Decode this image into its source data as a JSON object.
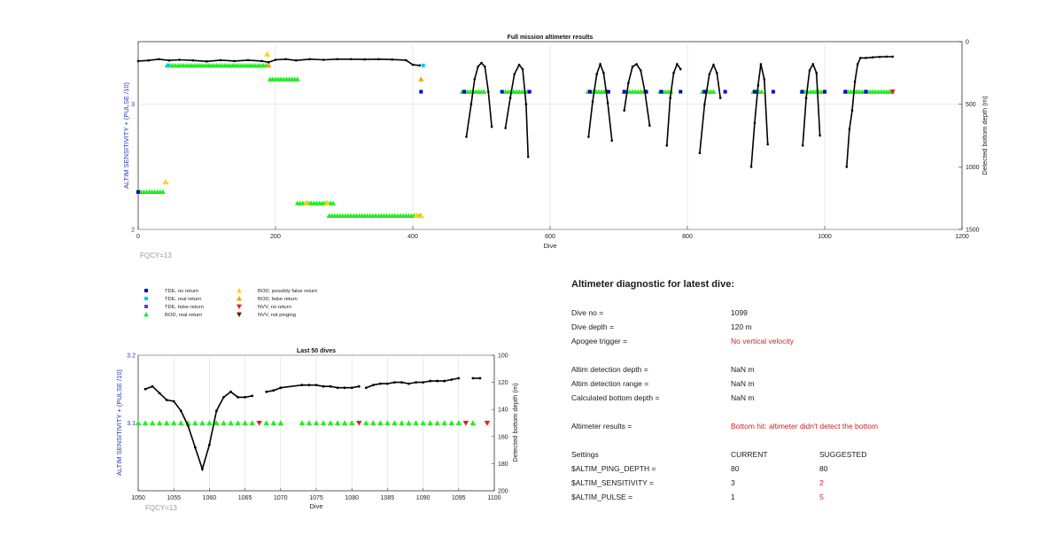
{
  "chart_data": [
    {
      "type": "scatter",
      "title": "Full mission altimeter results",
      "xlabel": "Dive",
      "ylabel": "ALTIM SENSITIVITY + (PULSE /10)",
      "y2label": "Detected bottom depth (m)",
      "xlim": [
        0,
        1200
      ],
      "ylim": [
        2,
        3.5
      ],
      "y2lim": [
        1500,
        0
      ],
      "y2_reversed": true,
      "x_ticks": [
        "0",
        "200",
        "400",
        "600",
        "800",
        "1000",
        "1200"
      ],
      "y_ticks": [
        "2",
        "3"
      ],
      "y2_ticks": [
        "0",
        "500",
        "1000",
        "1500"
      ],
      "grid": true,
      "annotation": "FQCY=13",
      "colors": {
        "tde_no_return": "#0000cc",
        "tde_real_return": "#00c8ff",
        "tde_false_return": "#7a2fc8",
        "bod_real_return": "#22ee22",
        "bod_possibly_false": "#ffd21a",
        "bod_false_return": "#ff9a00",
        "nvv_no_return": "#e02020",
        "nvv_not_pinging": "#7a1010",
        "depth_line": "#000000"
      },
      "series": [
        {
          "key": "bod_real",
          "x_ranges": [
            [
              42,
              188
            ],
            [
              192,
              232
            ],
            [
              232,
              285
            ],
            [
              278,
              412
            ],
            [
              472,
              505
            ],
            [
              535,
              568
            ],
            [
              655,
              685
            ],
            [
              708,
              740
            ],
            [
              760,
              778
            ],
            [
              822,
              840
            ],
            [
              896,
              910
            ],
            [
              967,
              1000
            ],
            [
              1030,
              1100
            ]
          ],
          "y_values": [
            3.31,
            3.2,
            2.21,
            2.11,
            3.1,
            3.1,
            3.1,
            3.1,
            3.1,
            3.1,
            3.1,
            3.1,
            3.1
          ]
        },
        {
          "key": "bod_real_left",
          "x_ranges": [
            [
              0,
              38
            ]
          ],
          "y_values": [
            2.3
          ]
        },
        {
          "key": "bod_possibly_false",
          "x": [
            188,
            40,
            405,
            412,
            245,
            275
          ],
          "y": [
            3.4,
            2.38,
            2.11,
            2.11,
            2.21,
            2.21
          ]
        },
        {
          "key": "bod_false",
          "x": [
            412,
            190
          ],
          "y": [
            3.2,
            3.31
          ]
        },
        {
          "key": "tde_no_return",
          "x": [
            0,
            412,
            475,
            530,
            570,
            658,
            685,
            708,
            740,
            762,
            790,
            825,
            855,
            898,
            925,
            967,
            1000,
            1030,
            1060
          ],
          "y": [
            2.3,
            3.1,
            3.1,
            3.1,
            3.1,
            3.1,
            3.1,
            3.1,
            3.1,
            3.1,
            3.1,
            3.1,
            3.1,
            3.1,
            3.1,
            3.1,
            3.1,
            3.1,
            3.1
          ]
        },
        {
          "key": "tde_real_return",
          "x": [
            44,
            415
          ],
          "y": [
            3.31,
            3.31
          ]
        },
        {
          "key": "nvv_no_return",
          "x": [
            1099
          ],
          "y": [
            3.1
          ]
        },
        {
          "key": "depth",
          "segments": [
            {
              "x": [
                0,
                15,
                30,
                45,
                60,
                80,
                100,
                120,
                140,
                160,
                180,
                190,
                200,
                215,
                230,
                250,
                270,
                290,
                310,
                330,
                350,
                370,
                390,
                400,
                410
              ],
              "depth": [
                155,
                150,
                140,
                150,
                145,
                150,
                158,
                148,
                155,
                148,
                155,
                165,
                145,
                140,
                150,
                140,
                145,
                140,
                140,
                142,
                140,
                143,
                148,
                185,
                190
              ]
            },
            {
              "x": [
                478,
                485,
                490,
                495,
                500,
                505,
                510,
                515
              ],
              "depth": [
                760,
                500,
                300,
                200,
                170,
                200,
                400,
                680
              ]
            },
            {
              "x": [
                535,
                542,
                548,
                555,
                560,
                565,
                568
              ],
              "depth": [
                690,
                450,
                260,
                185,
                220,
                500,
                920
              ]
            },
            {
              "x": [
                656,
                662,
                668,
                673,
                678,
                684,
                690
              ],
              "depth": [
                760,
                480,
                260,
                180,
                250,
                490,
                790
              ]
            },
            {
              "x": [
                708,
                714,
                720,
                726,
                732,
                738,
                745
              ],
              "depth": [
                550,
                330,
                200,
                180,
                230,
                400,
                670
              ]
            },
            {
              "x": [
                770,
                775,
                780,
                785,
                790
              ],
              "depth": [
                830,
                450,
                250,
                180,
                220
              ]
            },
            {
              "x": [
                818,
                825,
                832,
                838,
                843,
                848
              ],
              "depth": [
                890,
                500,
                260,
                185,
                250,
                450
              ]
            },
            {
              "x": [
                893,
                898,
                903,
                907,
                912,
                917
              ],
              "depth": [
                1000,
                650,
                350,
                180,
                300,
                820
              ]
            },
            {
              "x": [
                968,
                973,
                978,
                983,
                988,
                993
              ],
              "depth": [
                830,
                450,
                230,
                180,
                250,
                750
              ]
            },
            {
              "x": [
                1032,
                1036,
                1040,
                1044,
                1048,
                1052,
                1060,
                1070,
                1080,
                1090,
                1099
              ],
              "depth": [
                1000,
                700,
                550,
                320,
                180,
                130,
                130,
                125,
                122,
                120,
                120
              ]
            }
          ]
        }
      ]
    },
    {
      "type": "line",
      "title": "Last 50 dives",
      "xlabel": "Dive",
      "ylabel": "ALTIM SENSITIVITY + (PULSE /10)",
      "y2label": "Detected bottom depth (m)",
      "xlim": [
        1050,
        1100
      ],
      "ylim": [
        3.0,
        3.2
      ],
      "y2lim": [
        200,
        100
      ],
      "y2_reversed": true,
      "x_ticks": [
        "1050",
        "1055",
        "1060",
        "1065",
        "1070",
        "1075",
        "1080",
        "1085",
        "1090",
        "1095",
        "1100"
      ],
      "y_ticks": [
        "3.1",
        "3.2"
      ],
      "y2_ticks": [
        "100",
        "120",
        "140",
        "160",
        "180",
        "200"
      ],
      "grid": true,
      "annotation": "FQCY=13",
      "bod_real_x": [
        1050,
        1051,
        1052,
        1053,
        1054,
        1055,
        1056,
        1057,
        1058,
        1059,
        1060,
        1061,
        1062,
        1063,
        1064,
        1065,
        1066,
        1068,
        1069,
        1070,
        1073,
        1074,
        1075,
        1076,
        1077,
        1078,
        1079,
        1080,
        1082,
        1083,
        1084,
        1085,
        1086,
        1087,
        1088,
        1089,
        1090,
        1091,
        1092,
        1093,
        1094,
        1095,
        1097
      ],
      "nvv_no_return_x": [
        1067,
        1081,
        1096,
        1099
      ],
      "marker_y": 3.1,
      "depth_segments": [
        {
          "x": [
            1051,
            1052,
            1053,
            1054,
            1055,
            1056,
            1057,
            1058,
            1059,
            1060,
            1061,
            1062,
            1063,
            1064,
            1065,
            1066
          ],
          "depth": [
            125,
            123,
            128,
            133,
            134,
            141,
            152,
            168,
            184,
            166,
            141,
            131,
            127,
            131,
            131,
            130
          ]
        },
        {
          "x": [
            1068,
            1069,
            1070
          ],
          "depth": [
            127,
            126,
            124
          ]
        },
        {
          "x": [
            1070,
            1073,
            1074,
            1075,
            1076,
            1077,
            1078,
            1079,
            1080,
            1081
          ],
          "depth": [
            124,
            122,
            122,
            122,
            123,
            123,
            124,
            124,
            124,
            123
          ]
        },
        {
          "x": [
            1082,
            1083,
            1084,
            1085,
            1086,
            1087,
            1088,
            1089,
            1090,
            1091,
            1092,
            1093,
            1094,
            1095
          ],
          "depth": [
            124,
            122,
            121,
            121,
            120,
            120,
            121,
            120,
            120,
            119,
            119,
            119,
            118,
            117
          ]
        },
        {
          "x": [
            1097,
            1098
          ],
          "depth": [
            117,
            117
          ]
        }
      ]
    }
  ],
  "legend": [
    {
      "key": "tde_no_return",
      "label": "TDE, no return",
      "marker": "square"
    },
    {
      "key": "tde_real_return",
      "label": "TDE, real return",
      "marker": "square"
    },
    {
      "key": "tde_false_return",
      "label": "TDE, false return",
      "marker": "square"
    },
    {
      "key": "bod_real_return",
      "label": "BOD, real return",
      "marker": "triangle-up"
    },
    {
      "key": "bod_possibly_false",
      "label": "BOD, possibly false return",
      "marker": "triangle-up"
    },
    {
      "key": "bod_false_return",
      "label": "BOD, false return",
      "marker": "triangle-up"
    },
    {
      "key": "nvv_no_return",
      "label": "NVV, no return",
      "marker": "triangle-down"
    },
    {
      "key": "nvv_not_pinging",
      "label": "NVV, not pinging",
      "marker": "triangle-down"
    }
  ],
  "diagnostic": {
    "title": "Altimeter diagnostic for latest dive:",
    "dive_no_label": "Dive no =",
    "dive_no_value": "1099",
    "dive_depth_label": "Dive depth =",
    "dive_depth_value": "120 m",
    "apogee_label": "Apogee trigger =",
    "apogee_value": "No vertical velocity",
    "altim_detect_depth_label": "Altim detection depth =",
    "altim_detect_depth_value": "NaN m",
    "altim_detect_range_label": "Altim detection range =",
    "altim_detect_range_value": "NaN m",
    "calc_bottom_label": "Calculated bottom depth =",
    "calc_bottom_value": "NaN m",
    "results_label": "Altimeter results =",
    "results_value": "Bottom hit: altimeter didn't detect the bottom",
    "settings_label": "Settings",
    "current_label": "CURRENT",
    "suggested_label": "SUGGESTED",
    "ping_depth_label": "$ALTIM_PING_DEPTH =",
    "ping_depth_current": "80",
    "ping_depth_suggested": "80",
    "sensitivity_label": "$ALTIM_SENSITIVITY =",
    "sensitivity_current": "3",
    "sensitivity_suggested": "2",
    "pulse_label": "$ALTIM_PULSE =",
    "pulse_current": "1",
    "pulse_suggested": "5"
  }
}
